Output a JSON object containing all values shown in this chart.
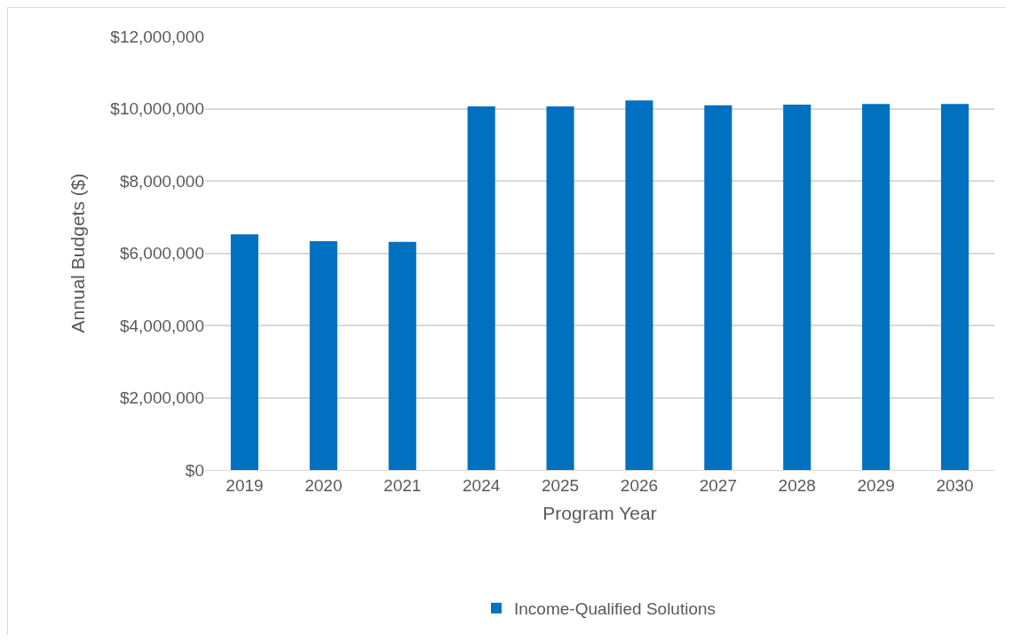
{
  "chart_data": {
    "type": "bar",
    "xlabel": "Program Year",
    "ylabel": "Annual Budgets ($)",
    "categories": [
      "2019",
      "2020",
      "2021",
      "2024",
      "2025",
      "2026",
      "2027",
      "2028",
      "2029",
      "2030"
    ],
    "series": [
      {
        "name": "Income-Qualified Solutions",
        "color": "#0070c0",
        "values": [
          6520000,
          6330000,
          6310000,
          10060000,
          10060000,
          10230000,
          10090000,
          10110000,
          10130000,
          10130000
        ]
      }
    ],
    "ylim": [
      0,
      12000000
    ],
    "yticks": [
      {
        "value": 0,
        "label": "$0"
      },
      {
        "value": 2000000,
        "label": "$2,000,000"
      },
      {
        "value": 4000000,
        "label": "$4,000,000"
      },
      {
        "value": 6000000,
        "label": "$6,000,000"
      },
      {
        "value": 8000000,
        "label": "$8,000,000"
      },
      {
        "value": 10000000,
        "label": "$10,000,000"
      },
      {
        "value": 12000000,
        "label": "$12,000,000"
      }
    ],
    "grid": "y",
    "legend": "bottom"
  }
}
